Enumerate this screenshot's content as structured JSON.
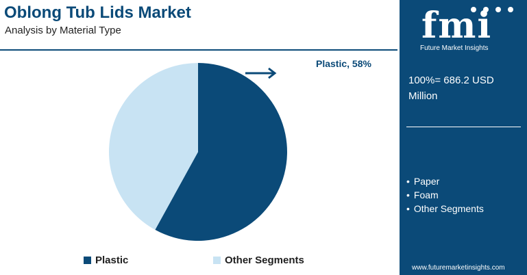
{
  "header": {
    "title": "Oblong Tub Lids Market",
    "subtitle": "Analysis by Material Type"
  },
  "chart_data": {
    "type": "pie",
    "title": "",
    "categories": [
      "Plastic",
      "Other Segments"
    ],
    "values": [
      58,
      42
    ],
    "colors": [
      "#0b4a78",
      "#c8e3f3"
    ],
    "annotations": [
      {
        "label": "Plastic, 58%",
        "target": "Plastic"
      }
    ],
    "legend_placement": "bottom"
  },
  "legend": {
    "items": [
      {
        "label": "Plastic",
        "color": "#0b4a78"
      },
      {
        "label": "Other Segments",
        "color": "#c8e3f3"
      }
    ]
  },
  "panel": {
    "logo_text": "fmi",
    "logo_subtitle": "Future Market Insights",
    "total_text": "100%= 686.2 USD Million",
    "other_segments": [
      "Paper",
      "Foam",
      "Other Segments"
    ],
    "website": "www.futuremarketinsights.com"
  },
  "colors": {
    "brand": "#0b4a78",
    "light": "#c8e3f3"
  }
}
